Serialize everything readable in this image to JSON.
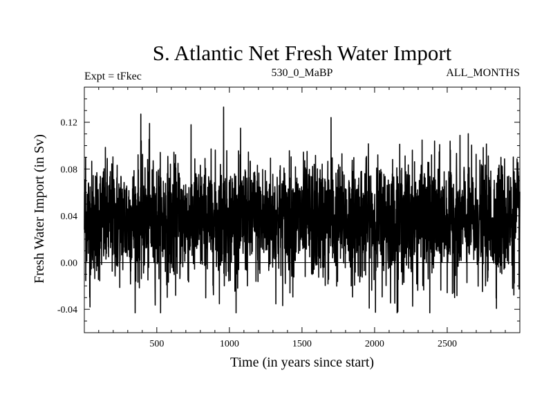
{
  "chart_data": {
    "type": "line",
    "title": "S. Atlantic Net Fresh Water Import",
    "subtitle_left": "Expt = tFkec",
    "subtitle_center": "530_0_MaBP",
    "subtitle_right": "ALL_MONTHS",
    "xlabel": "Time (in years since start)",
    "ylabel": "Fresh Water Import (in Sv)",
    "xlim": [
      1,
      3000
    ],
    "ylim": [
      -0.06,
      0.15
    ],
    "xticks": [
      500,
      1000,
      1500,
      2000,
      2500
    ],
    "yticks": [
      -0.04,
      0.0,
      0.04,
      0.08,
      0.12
    ],
    "ytick_labels": [
      "-0.04",
      "0.00",
      "0.04",
      "0.08",
      "0.12"
    ],
    "zero_line": 0.0,
    "series": [
      {
        "x_start": 1,
        "x_step": 1,
        "n_points": 3000,
        "mean": 0.036,
        "std": 0.025,
        "min": -0.043,
        "max": 0.133,
        "values_sample": [
          {
            "x": 10,
            "y": 0.09
          },
          {
            "x": 40,
            "y": -0.038
          },
          {
            "x": 390,
            "y": 0.127
          },
          {
            "x": 450,
            "y": 0.119
          },
          {
            "x": 960,
            "y": 0.133
          },
          {
            "x": 1700,
            "y": 0.124
          },
          {
            "x": 2160,
            "y": -0.042
          },
          {
            "x": 2380,
            "y": -0.043
          },
          {
            "x": 2870,
            "y": 0.09
          }
        ]
      }
    ]
  }
}
